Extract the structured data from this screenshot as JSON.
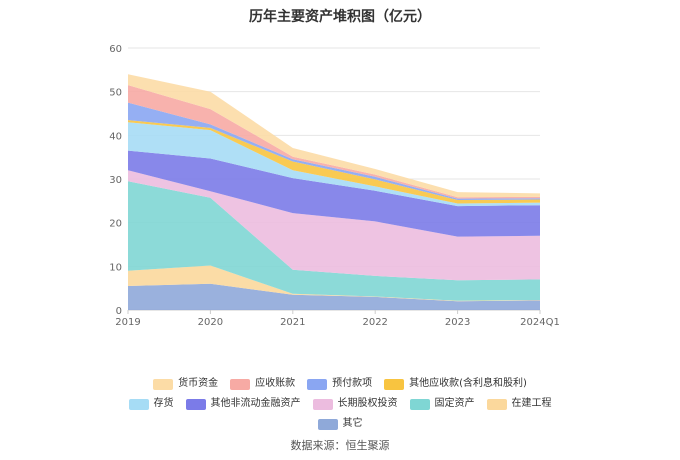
{
  "source": "数据来源：恒生聚源",
  "chart_data": {
    "type": "area",
    "stacked": true,
    "title": "历年主要资产堆积图（亿元）",
    "categories": [
      "2019",
      "2020",
      "2021",
      "2022",
      "2023",
      "2024Q1"
    ],
    "ylim": [
      0,
      60
    ],
    "yticks": [
      0,
      10,
      20,
      30,
      40,
      50,
      60
    ],
    "grid": true,
    "legend_position": "bottom",
    "series": [
      {
        "name": "其它",
        "color": "#8fa9d9",
        "values": [
          5.5,
          6.0,
          3.5,
          3.0,
          2.0,
          2.2
        ]
      },
      {
        "name": "在建工程",
        "color": "#fbd89c",
        "values": [
          3.5,
          4.2,
          0.2,
          0.1,
          0.1,
          0.1
        ]
      },
      {
        "name": "固定资产",
        "color": "#7fd6d4",
        "values": [
          20.5,
          15.5,
          5.5,
          4.7,
          4.7,
          4.7
        ]
      },
      {
        "name": "长期股权投资",
        "color": "#ecbcdf",
        "values": [
          2.5,
          1.5,
          13.0,
          12.5,
          10.0,
          10.0
        ]
      },
      {
        "name": "其他非流动金融资产",
        "color": "#7b7be8",
        "values": [
          4.5,
          7.5,
          8.0,
          7.0,
          7.0,
          7.0
        ]
      },
      {
        "name": "存货",
        "color": "#a6dcf5",
        "values": [
          6.5,
          6.5,
          1.8,
          1.0,
          0.6,
          0.6
        ]
      },
      {
        "name": "其他应收款(含利息和股利)",
        "color": "#f8c440",
        "values": [
          0.5,
          0.5,
          2.0,
          1.6,
          0.8,
          0.7
        ]
      },
      {
        "name": "预付款项",
        "color": "#8aa6f2",
        "values": [
          4.0,
          0.8,
          0.5,
          0.6,
          0.3,
          0.3
        ]
      },
      {
        "name": "应收账款",
        "color": "#f7aaa4",
        "values": [
          4.0,
          3.5,
          0.6,
          0.5,
          0.3,
          0.3
        ]
      },
      {
        "name": "货币资金",
        "color": "#fcdca6",
        "values": [
          2.5,
          4.0,
          2.0,
          1.3,
          1.2,
          0.8
        ]
      }
    ],
    "legend_order": [
      "货币资金",
      "应收账款",
      "预付款项",
      "其他应收款(含利息和股利)",
      "存货",
      "其他非流动金融资产",
      "长期股权投资",
      "固定资产",
      "在建工程",
      "其它"
    ]
  }
}
